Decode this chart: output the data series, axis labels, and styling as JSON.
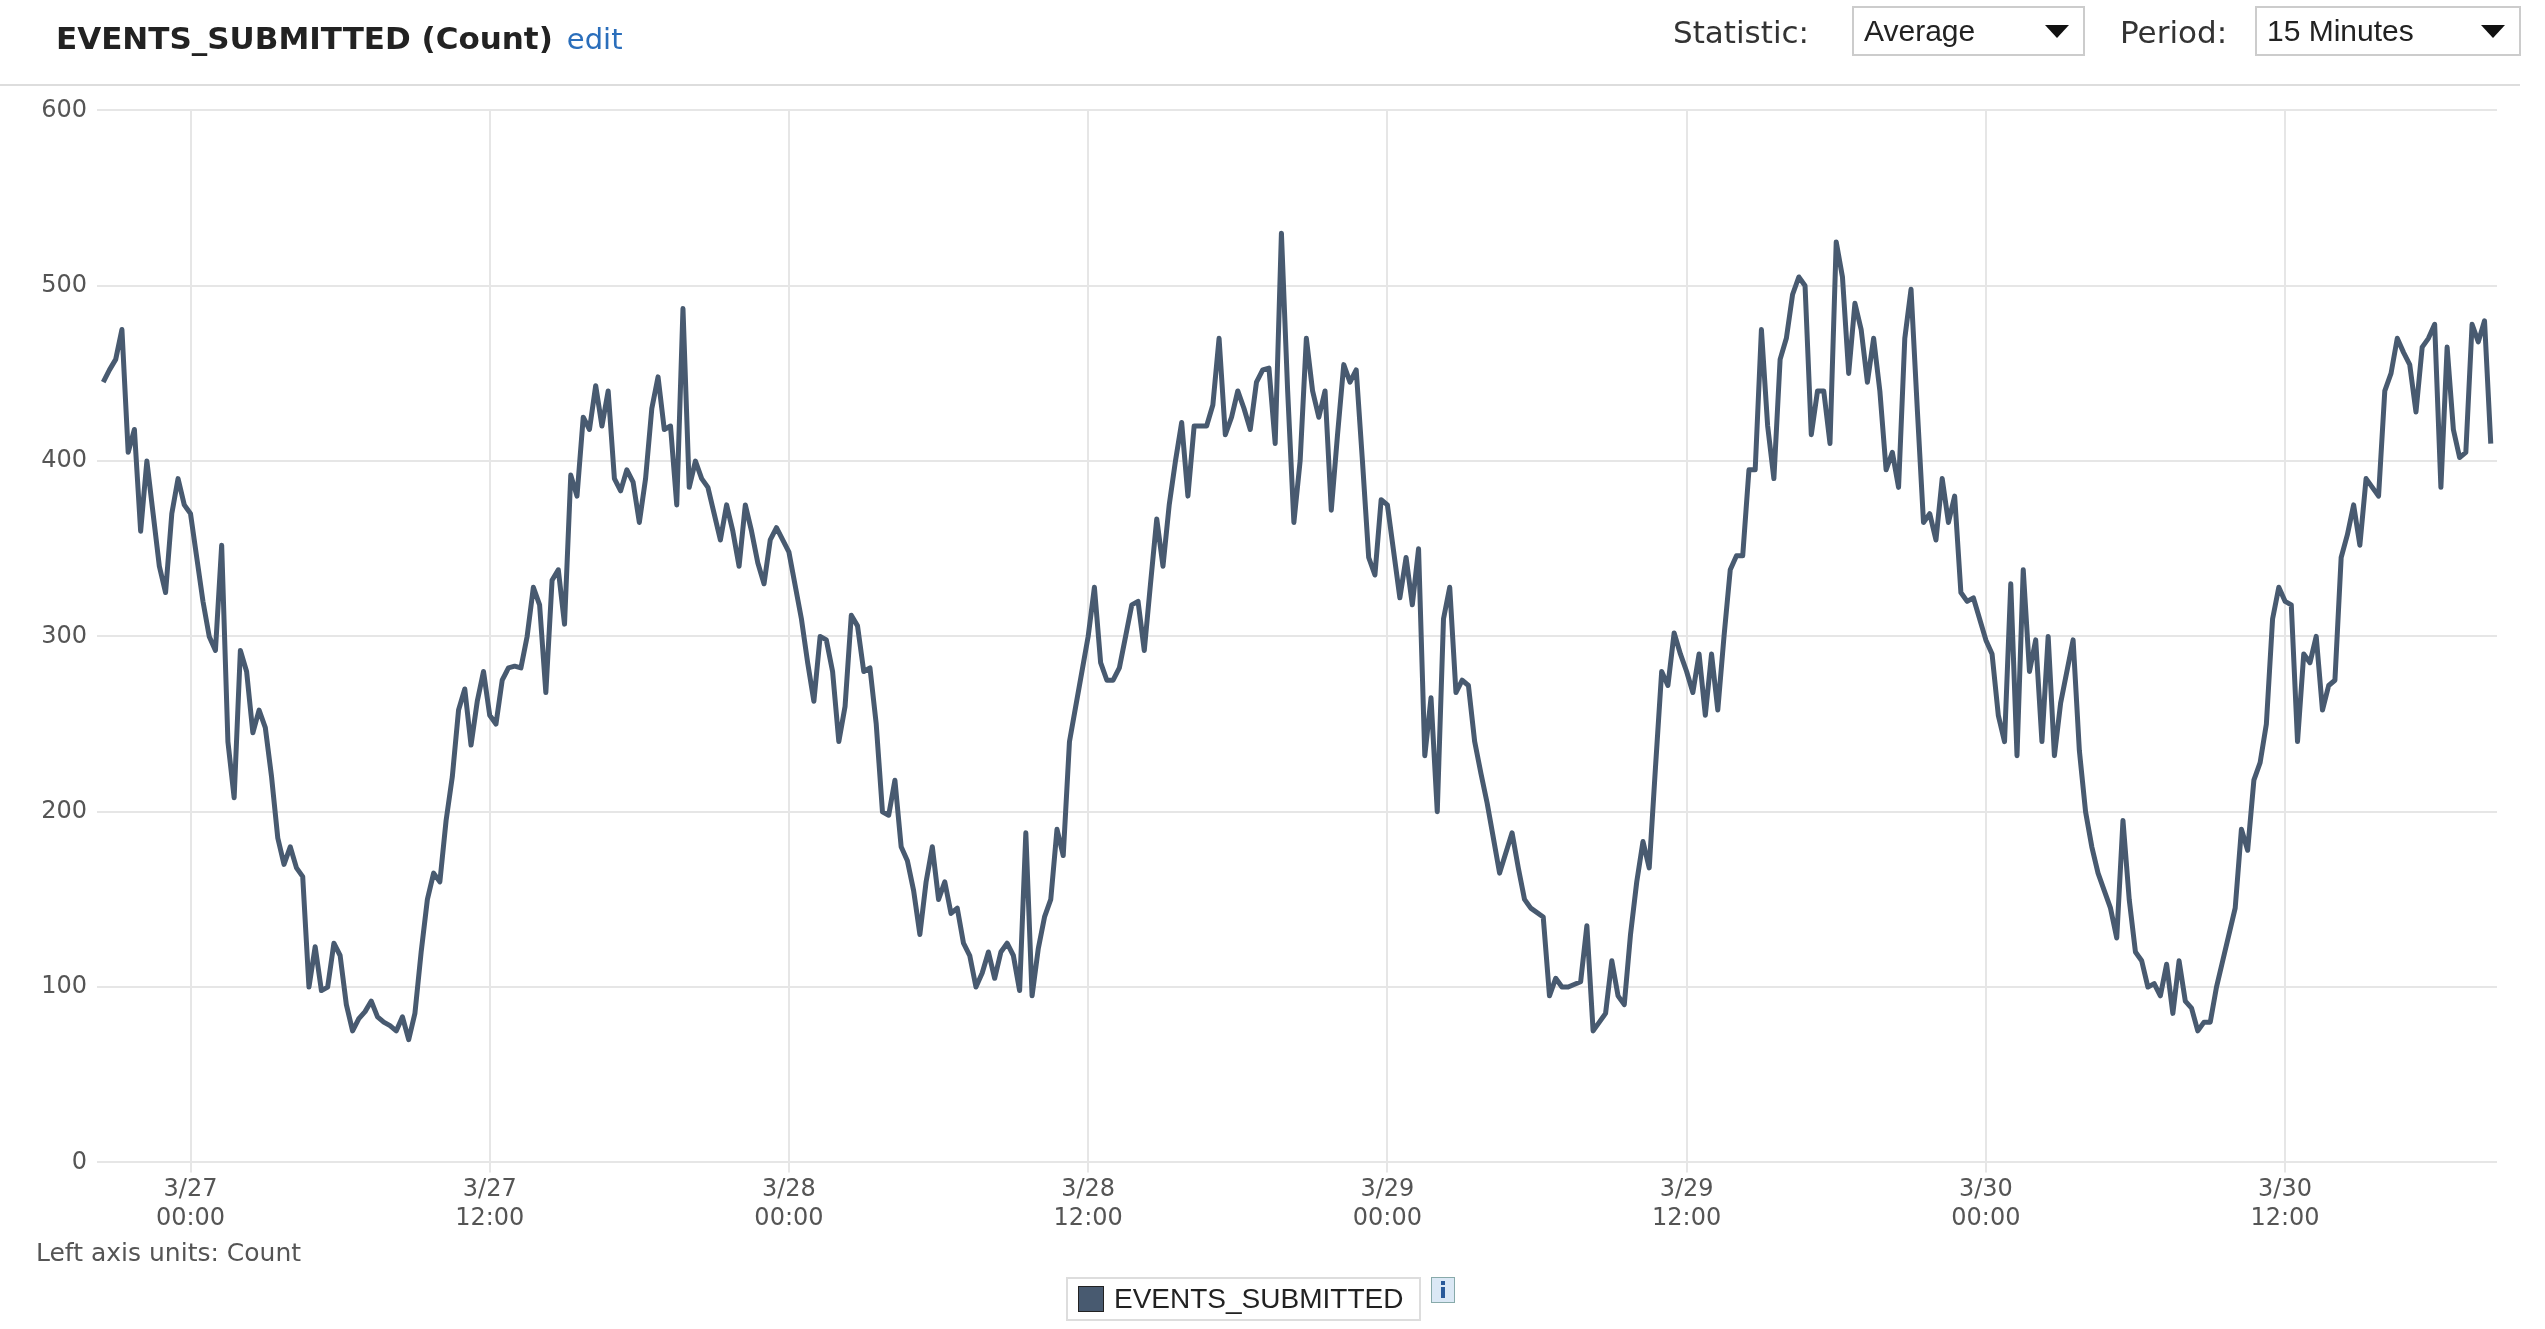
{
  "chart_data": {
    "type": "line",
    "title": "EVENTS_SUBMITTED (Count)",
    "annotations": [
      "edit",
      "Statistic:",
      "Average",
      "Period:",
      "15 Minutes",
      "Left axis units: Count"
    ],
    "xlim": [
      "--03-26T20:15",
      "--03-30T20:30"
    ],
    "xticks": [
      {
        "value": "--03-27T00:00",
        "label": "3/27\n00:00"
      },
      {
        "value": "--03-27T12:00",
        "label": "3/27\n12:00"
      },
      {
        "value": "--03-28T00:00",
        "label": "3/28\n00:00"
      },
      {
        "value": "--03-28T12:00",
        "label": "3/28\n12:00"
      },
      {
        "value": "--03-29T00:00",
        "label": "3/29\n00:00"
      },
      {
        "value": "--03-29T12:00",
        "label": "3/29\n12:00"
      },
      {
        "value": "--03-30T00:00",
        "label": "3/30\n00:00"
      },
      {
        "value": "--03-30T12:00",
        "label": "3/30\n12:00"
      }
    ],
    "ylim": [
      0,
      600
    ],
    "yticks": [
      0,
      100,
      200,
      300,
      400,
      500,
      600
    ],
    "grid": true,
    "legend": "bottom",
    "x": [
      "--03-26T20:30",
      "--03-26T20:45",
      "--03-26T21:00",
      "--03-26T21:15",
      "--03-26T21:30",
      "--03-26T21:45",
      "--03-26T22:00",
      "--03-26T22:15",
      "--03-26T22:30",
      "--03-26T22:45",
      "--03-26T23:00",
      "--03-26T23:15",
      "--03-26T23:30",
      "--03-26T23:45",
      "--03-27T00:00",
      "--03-27T00:15",
      "--03-27T00:30",
      "--03-27T00:45",
      "--03-27T01:00",
      "--03-27T01:15",
      "--03-27T01:30",
      "--03-27T01:45",
      "--03-27T02:00",
      "--03-27T02:15",
      "--03-27T02:30",
      "--03-27T02:45",
      "--03-27T03:00",
      "--03-27T03:15",
      "--03-27T03:30",
      "--03-27T03:45",
      "--03-27T04:00",
      "--03-27T04:15",
      "--03-27T04:30",
      "--03-27T04:45",
      "--03-27T05:00",
      "--03-27T05:15",
      "--03-27T05:30",
      "--03-27T05:45",
      "--03-27T06:00",
      "--03-27T06:15",
      "--03-27T06:30",
      "--03-27T06:45",
      "--03-27T07:00",
      "--03-27T07:15",
      "--03-27T07:30",
      "--03-27T07:45",
      "--03-27T08:00",
      "--03-27T08:15",
      "--03-27T08:30",
      "--03-27T08:45",
      "--03-27T09:00",
      "--03-27T09:15",
      "--03-27T09:30",
      "--03-27T09:45",
      "--03-27T10:00",
      "--03-27T10:15",
      "--03-27T10:30",
      "--03-27T10:45",
      "--03-27T11:00",
      "--03-27T11:15",
      "--03-27T11:30",
      "--03-27T11:45",
      "--03-27T12:00",
      "--03-27T12:15",
      "--03-27T12:30",
      "--03-27T12:45",
      "--03-27T13:00",
      "--03-27T13:15",
      "--03-27T13:30",
      "--03-27T13:45",
      "--03-27T14:00",
      "--03-27T14:15",
      "--03-27T14:30",
      "--03-27T14:45",
      "--03-27T15:00",
      "--03-27T15:15",
      "--03-27T15:30",
      "--03-27T15:45",
      "--03-27T16:00",
      "--03-27T16:15",
      "--03-27T16:30",
      "--03-27T16:45",
      "--03-27T17:00",
      "--03-27T17:15",
      "--03-27T17:30",
      "--03-27T17:45",
      "--03-27T18:00",
      "--03-27T18:15",
      "--03-27T18:30",
      "--03-27T18:45",
      "--03-27T19:00",
      "--03-27T19:15",
      "--03-27T19:30",
      "--03-27T19:45",
      "--03-27T20:00",
      "--03-27T20:15",
      "--03-27T20:30",
      "--03-27T20:45",
      "--03-27T21:00",
      "--03-27T21:15",
      "--03-27T21:30",
      "--03-27T21:45",
      "--03-27T22:00",
      "--03-27T22:15",
      "--03-27T22:30",
      "--03-27T22:45",
      "--03-27T23:00",
      "--03-27T23:15",
      "--03-27T23:30",
      "--03-28T00:00",
      "--03-28T00:30",
      "--03-28T00:45",
      "--03-28T01:00",
      "--03-28T01:15",
      "--03-28T01:30",
      "--03-28T01:45",
      "--03-28T02:00",
      "--03-28T02:15",
      "--03-28T02:30",
      "--03-28T02:45",
      "--03-28T03:00",
      "--03-28T03:15",
      "--03-28T03:30",
      "--03-28T03:45",
      "--03-28T04:00",
      "--03-28T04:15",
      "--03-28T04:30",
      "--03-28T04:45",
      "--03-28T05:00",
      "--03-28T05:15",
      "--03-28T05:30",
      "--03-28T05:45",
      "--03-28T06:00",
      "--03-28T06:15",
      "--03-28T06:30",
      "--03-28T06:45",
      "--03-28T07:00",
      "--03-28T07:15",
      "--03-28T07:30",
      "--03-28T07:45",
      "--03-28T08:00",
      "--03-28T08:15",
      "--03-28T08:30",
      "--03-28T08:45",
      "--03-28T09:00",
      "--03-28T09:15",
      "--03-28T09:30",
      "--03-28T09:45",
      "--03-28T10:00",
      "--03-28T10:15",
      "--03-28T10:30",
      "--03-28T10:45",
      "--03-28T11:00",
      "--03-28T11:15",
      "--03-28T11:30",
      "--03-28T11:45",
      "--03-28T12:00",
      "--03-28T12:15",
      "--03-28T12:30",
      "--03-28T12:45",
      "--03-28T13:00",
      "--03-28T13:15",
      "--03-28T13:30",
      "--03-28T13:45",
      "--03-28T14:00",
      "--03-28T14:15",
      "--03-28T14:30",
      "--03-28T14:45",
      "--03-28T15:00",
      "--03-28T15:15",
      "--03-28T15:30",
      "--03-28T15:45",
      "--03-28T16:00",
      "--03-28T16:15",
      "--03-28T16:30",
      "--03-28T16:45",
      "--03-28T17:00",
      "--03-28T17:15",
      "--03-28T17:30",
      "--03-28T17:45",
      "--03-28T18:00",
      "--03-28T18:15",
      "--03-28T18:30",
      "--03-28T18:45",
      "--03-28T19:00",
      "--03-28T19:15",
      "--03-28T19:30",
      "--03-28T19:45",
      "--03-28T20:00",
      "--03-28T20:15",
      "--03-28T20:30",
      "--03-28T20:45",
      "--03-28T21:00",
      "--03-28T21:15",
      "--03-28T21:30",
      "--03-28T21:45",
      "--03-28T22:00",
      "--03-28T22:15",
      "--03-28T22:30",
      "--03-28T22:45",
      "--03-28T23:00",
      "--03-28T23:15",
      "--03-28T23:30",
      "--03-28T23:45",
      "--03-29T00:00",
      "--03-29T00:30",
      "--03-29T00:45",
      "--03-29T01:00",
      "--03-29T01:15",
      "--03-29T01:30",
      "--03-29T01:45",
      "--03-29T02:00",
      "--03-29T02:15",
      "--03-29T02:30",
      "--03-29T02:45",
      "--03-29T03:00",
      "--03-29T03:15",
      "--03-29T03:30",
      "--03-29T03:45",
      "--03-29T04:00",
      "--03-29T04:15",
      "--03-29T04:30",
      "--03-29T05:00",
      "--03-29T05:15",
      "--03-29T05:30",
      "--03-29T05:45",
      "--03-29T06:15",
      "--03-29T06:30",
      "--03-29T06:45",
      "--03-29T07:00",
      "--03-29T07:15",
      "--03-29T07:45",
      "--03-29T08:00",
      "--03-29T08:15",
      "--03-29T08:30",
      "--03-29T08:45",
      "--03-29T09:00",
      "--03-29T09:15",
      "--03-29T09:30",
      "--03-29T09:45",
      "--03-29T10:00",
      "--03-29T10:15",
      "--03-29T10:30",
      "--03-29T10:45",
      "--03-29T11:00",
      "--03-29T11:15",
      "--03-29T11:30",
      "--03-29T11:45",
      "--03-29T12:00",
      "--03-29T12:15",
      "--03-29T12:30",
      "--03-29T12:45",
      "--03-29T13:00",
      "--03-29T13:15",
      "--03-29T13:30",
      "--03-29T13:45",
      "--03-29T14:00",
      "--03-29T14:15",
      "--03-29T14:30",
      "--03-29T14:45",
      "--03-29T15:00",
      "--03-29T15:15",
      "--03-29T15:30",
      "--03-29T15:45",
      "--03-29T16:00",
      "--03-29T16:15",
      "--03-29T16:30",
      "--03-29T16:45",
      "--03-29T17:00",
      "--03-29T17:15",
      "--03-29T17:30",
      "--03-29T17:45",
      "--03-29T18:00",
      "--03-29T18:15",
      "--03-29T18:30",
      "--03-29T18:45",
      "--03-29T19:00",
      "--03-29T19:15",
      "--03-29T19:30",
      "--03-29T19:45",
      "--03-29T20:00",
      "--03-29T20:15",
      "--03-29T20:30",
      "--03-29T20:45",
      "--03-29T21:00",
      "--03-29T21:15",
      "--03-29T21:30",
      "--03-29T21:45",
      "--03-29T22:00",
      "--03-29T22:15",
      "--03-29T22:30",
      "--03-29T22:45",
      "--03-29T23:00",
      "--03-29T23:15",
      "--03-29T23:30",
      "--03-30T00:00",
      "--03-30T00:15",
      "--03-30T00:30",
      "--03-30T00:45",
      "--03-30T01:00",
      "--03-30T01:15",
      "--03-30T01:30",
      "--03-30T01:45",
      "--03-30T02:00",
      "--03-30T02:15",
      "--03-30T02:30",
      "--03-30T02:45",
      "--03-30T03:00",
      "--03-30T03:30",
      "--03-30T03:45",
      "--03-30T04:00",
      "--03-30T04:15",
      "--03-30T04:30",
      "--03-30T04:45",
      "--03-30T05:00",
      "--03-30T05:15",
      "--03-30T05:30",
      "--03-30T05:45",
      "--03-30T06:00",
      "--03-30T06:15",
      "--03-30T06:30",
      "--03-30T06:45",
      "--03-30T07:00",
      "--03-30T07:15",
      "--03-30T07:30",
      "--03-30T07:45",
      "--03-30T08:00",
      "--03-30T08:15",
      "--03-30T08:30",
      "--03-30T08:45",
      "--03-30T09:00",
      "--03-30T09:15",
      "--03-30T09:30",
      "--03-30T10:00",
      "--03-30T10:15",
      "--03-30T10:30",
      "--03-30T10:45",
      "--03-30T11:00",
      "--03-30T11:15",
      "--03-30T11:30",
      "--03-30T11:45",
      "--03-30T12:00",
      "--03-30T12:15",
      "--03-30T12:30",
      "--03-30T12:45",
      "--03-30T13:00",
      "--03-30T13:15",
      "--03-30T13:30",
      "--03-30T13:45",
      "--03-30T14:00",
      "--03-30T14:15",
      "--03-30T14:30",
      "--03-30T14:45",
      "--03-30T15:00",
      "--03-30T15:15",
      "--03-30T15:30",
      "--03-30T15:45",
      "--03-30T16:00",
      "--03-30T16:15",
      "--03-30T16:30",
      "--03-30T16:45",
      "--03-30T17:00",
      "--03-30T17:15",
      "--03-30T17:30",
      "--03-30T17:45",
      "--03-30T18:00",
      "--03-30T18:15",
      "--03-30T18:30",
      "--03-30T18:45",
      "--03-30T19:00",
      "--03-30T19:15",
      "--03-30T19:30",
      "--03-30T19:45",
      "--03-30T20:00",
      "--03-30T20:15"
    ],
    "series": [
      {
        "name": "EVENTS_SUBMITTED",
        "color": "#485a70",
        "values": [
          445,
          452,
          458,
          475,
          405,
          418,
          360,
          400,
          370,
          340,
          325,
          370,
          390,
          375,
          370,
          345,
          320,
          300,
          292,
          352,
          240,
          208,
          292,
          280,
          245,
          258,
          248,
          220,
          185,
          170,
          180,
          168,
          163,
          100,
          123,
          98,
          100,
          125,
          118,
          90,
          75,
          82,
          86,
          92,
          83,
          80,
          78,
          75,
          83,
          70,
          85,
          120,
          150,
          165,
          160,
          195,
          220,
          258,
          270,
          238,
          263,
          280,
          255,
          250,
          275,
          282,
          283,
          282,
          300,
          328,
          318,
          268,
          332,
          338,
          307,
          392,
          380,
          425,
          418,
          443,
          420,
          440,
          390,
          383,
          395,
          388,
          365,
          390,
          430,
          448,
          418,
          420,
          375,
          487,
          385,
          400,
          390,
          385,
          370,
          355,
          375,
          360,
          340,
          375,
          360,
          342,
          330,
          355,
          362,
          348,
          310,
          285,
          263,
          300,
          298,
          280,
          240,
          260,
          312,
          306,
          280,
          282,
          250,
          200,
          198,
          218,
          180,
          172,
          155,
          130,
          160,
          180,
          150,
          160,
          142,
          145,
          125,
          118,
          100,
          108,
          120,
          105,
          120,
          125,
          118,
          98,
          188,
          95,
          122,
          140,
          150,
          190,
          175,
          240,
          260,
          280,
          300,
          328,
          285,
          275,
          275,
          282,
          300,
          318,
          320,
          292,
          330,
          367,
          340,
          375,
          400,
          422,
          380,
          420,
          420,
          420,
          432,
          470,
          415,
          425,
          440,
          430,
          418,
          445,
          452,
          453,
          410,
          530,
          440,
          365,
          400,
          470,
          440,
          425,
          440,
          372,
          415,
          455,
          445,
          452,
          400,
          345,
          335,
          378,
          375,
          322,
          345,
          318,
          350,
          232,
          265,
          200,
          310,
          328,
          268,
          275,
          272,
          240,
          222,
          205,
          185,
          165,
          188,
          168,
          150,
          145,
          140,
          95,
          105,
          100,
          100,
          103,
          135,
          75,
          80,
          85,
          115,
          95,
          90,
          130,
          160,
          183,
          168,
          225,
          280,
          272,
          302,
          290,
          280,
          268,
          290,
          255,
          290,
          258,
          300,
          338,
          346,
          346,
          395,
          395,
          475,
          420,
          390,
          458,
          470,
          495,
          505,
          500,
          415,
          440,
          440,
          410,
          525,
          505,
          450,
          490,
          475,
          445,
          470,
          440,
          395,
          405,
          385,
          470,
          498,
          430,
          365,
          370,
          355,
          390,
          365,
          380,
          325,
          320,
          322,
          298,
          290,
          255,
          240,
          330,
          232,
          338,
          280,
          298,
          240,
          300,
          232,
          262,
          298,
          235,
          200,
          180,
          165,
          155,
          145,
          128,
          195,
          150,
          120,
          115,
          100,
          102,
          95,
          113,
          85,
          115,
          92,
          88,
          75,
          80,
          80,
          100,
          115,
          145,
          190,
          178,
          218,
          228,
          250,
          310,
          328,
          320,
          318,
          240,
          290,
          285,
          300,
          258,
          272,
          275,
          345,
          358,
          375,
          352,
          390,
          385,
          380,
          440,
          450,
          470,
          462,
          455,
          428,
          465,
          470,
          478,
          385,
          465,
          418,
          402,
          405,
          478,
          468,
          480,
          410
        ]
      }
    ]
  }
}
